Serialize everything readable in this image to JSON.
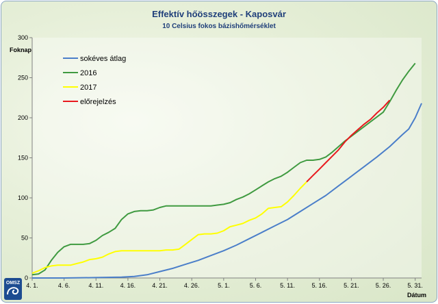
{
  "chart_data": {
    "type": "line",
    "title": "Effektív hőösszegek - Kaposvár",
    "subtitle": "10 Celsius fokos bázishőmérséklet",
    "ylabel": "Foknap",
    "xlabel": "Dátum",
    "x_days_range": [
      0,
      61
    ],
    "ylim": [
      0,
      300
    ],
    "yticks": [
      0,
      50,
      100,
      150,
      200,
      250,
      300
    ],
    "xticks": [
      {
        "day": 0,
        "label": "4. 1."
      },
      {
        "day": 5,
        "label": "4. 6."
      },
      {
        "day": 10,
        "label": "4. 11."
      },
      {
        "day": 15,
        "label": "4. 16."
      },
      {
        "day": 20,
        "label": "4. 21."
      },
      {
        "day": 25,
        "label": "4. 26."
      },
      {
        "day": 30,
        "label": "5. 1."
      },
      {
        "day": 35,
        "label": "5. 6."
      },
      {
        "day": 40,
        "label": "5. 11."
      },
      {
        "day": 45,
        "label": "5. 16."
      },
      {
        "day": 50,
        "label": "5. 21."
      },
      {
        "day": 55,
        "label": "5. 26."
      },
      {
        "day": 60,
        "label": "5. 31."
      }
    ],
    "grid": false,
    "legend_position": "top-left",
    "series": [
      {
        "name": "sokéves átlag",
        "color": "#4a7ec9",
        "points": [
          [
            0,
            0
          ],
          [
            5,
            0
          ],
          [
            10,
            0.5
          ],
          [
            14,
            1
          ],
          [
            16,
            2
          ],
          [
            18,
            4
          ],
          [
            20,
            8
          ],
          [
            22,
            12
          ],
          [
            24,
            17
          ],
          [
            26,
            22
          ],
          [
            28,
            28
          ],
          [
            30,
            34
          ],
          [
            32,
            41
          ],
          [
            34,
            49
          ],
          [
            36,
            57
          ],
          [
            38,
            65
          ],
          [
            40,
            73
          ],
          [
            42,
            83
          ],
          [
            44,
            93
          ],
          [
            46,
            103
          ],
          [
            48,
            115
          ],
          [
            50,
            127
          ],
          [
            52,
            139
          ],
          [
            54,
            151
          ],
          [
            56,
            164
          ],
          [
            58,
            179
          ],
          [
            59,
            186
          ],
          [
            60,
            200
          ],
          [
            61,
            218
          ]
        ]
      },
      {
        "name": "2016",
        "color": "#3f9a40",
        "points": [
          [
            0,
            4
          ],
          [
            1,
            5
          ],
          [
            2,
            10
          ],
          [
            3,
            22
          ],
          [
            4,
            32
          ],
          [
            5,
            39
          ],
          [
            6,
            42
          ],
          [
            7,
            42
          ],
          [
            8,
            42
          ],
          [
            9,
            43
          ],
          [
            10,
            47
          ],
          [
            11,
            53
          ],
          [
            12,
            57
          ],
          [
            13,
            62
          ],
          [
            14,
            73
          ],
          [
            15,
            80
          ],
          [
            16,
            83
          ],
          [
            17,
            84
          ],
          [
            18,
            84
          ],
          [
            19,
            85
          ],
          [
            20,
            88
          ],
          [
            21,
            90
          ],
          [
            22,
            90
          ],
          [
            23,
            90
          ],
          [
            24,
            90
          ],
          [
            25,
            90
          ],
          [
            26,
            90
          ],
          [
            27,
            90
          ],
          [
            28,
            90
          ],
          [
            29,
            91
          ],
          [
            30,
            92
          ],
          [
            31,
            94
          ],
          [
            32,
            98
          ],
          [
            33,
            101
          ],
          [
            34,
            105
          ],
          [
            35,
            110
          ],
          [
            36,
            115
          ],
          [
            37,
            120
          ],
          [
            38,
            124
          ],
          [
            39,
            127
          ],
          [
            40,
            132
          ],
          [
            41,
            138
          ],
          [
            42,
            144
          ],
          [
            43,
            147
          ],
          [
            44,
            147
          ],
          [
            45,
            148
          ],
          [
            46,
            151
          ],
          [
            47,
            157
          ],
          [
            48,
            164
          ],
          [
            49,
            171
          ],
          [
            50,
            177
          ],
          [
            51,
            183
          ],
          [
            52,
            189
          ],
          [
            53,
            195
          ],
          [
            54,
            201
          ],
          [
            55,
            207
          ],
          [
            56,
            220
          ],
          [
            57,
            234
          ],
          [
            58,
            247
          ],
          [
            59,
            258
          ],
          [
            60,
            268
          ]
        ]
      },
      {
        "name": "2017",
        "color": "#ffff00",
        "points": [
          [
            0,
            6
          ],
          [
            1,
            9
          ],
          [
            2,
            13
          ],
          [
            3,
            15
          ],
          [
            4,
            16
          ],
          [
            5,
            16
          ],
          [
            6,
            16
          ],
          [
            7,
            18
          ],
          [
            8,
            20
          ],
          [
            9,
            23
          ],
          [
            10,
            24
          ],
          [
            11,
            26
          ],
          [
            12,
            30
          ],
          [
            13,
            33
          ],
          [
            14,
            34
          ],
          [
            15,
            34
          ],
          [
            16,
            34
          ],
          [
            17,
            34
          ],
          [
            18,
            34
          ],
          [
            19,
            34
          ],
          [
            20,
            34
          ],
          [
            21,
            35
          ],
          [
            22,
            35
          ],
          [
            23,
            36
          ],
          [
            24,
            42
          ],
          [
            25,
            48
          ],
          [
            26,
            54
          ],
          [
            27,
            55
          ],
          [
            28,
            55
          ],
          [
            29,
            56
          ],
          [
            30,
            59
          ],
          [
            31,
            64
          ],
          [
            32,
            66
          ],
          [
            33,
            68
          ],
          [
            34,
            72
          ],
          [
            35,
            75
          ],
          [
            36,
            80
          ],
          [
            37,
            87
          ],
          [
            38,
            88
          ],
          [
            39,
            89
          ],
          [
            40,
            95
          ],
          [
            41,
            103
          ],
          [
            42,
            112
          ],
          [
            43,
            120
          ]
        ]
      },
      {
        "name": "előrejelzés",
        "color": "#e8181d",
        "points": [
          [
            43,
            120
          ],
          [
            44,
            128
          ],
          [
            45,
            136
          ],
          [
            46,
            144
          ],
          [
            47,
            152
          ],
          [
            48,
            160
          ],
          [
            49,
            170
          ],
          [
            50,
            178
          ],
          [
            51,
            185
          ],
          [
            52,
            192
          ],
          [
            53,
            198
          ],
          [
            54,
            206
          ],
          [
            55,
            213
          ],
          [
            56,
            222
          ]
        ]
      }
    ]
  }
}
